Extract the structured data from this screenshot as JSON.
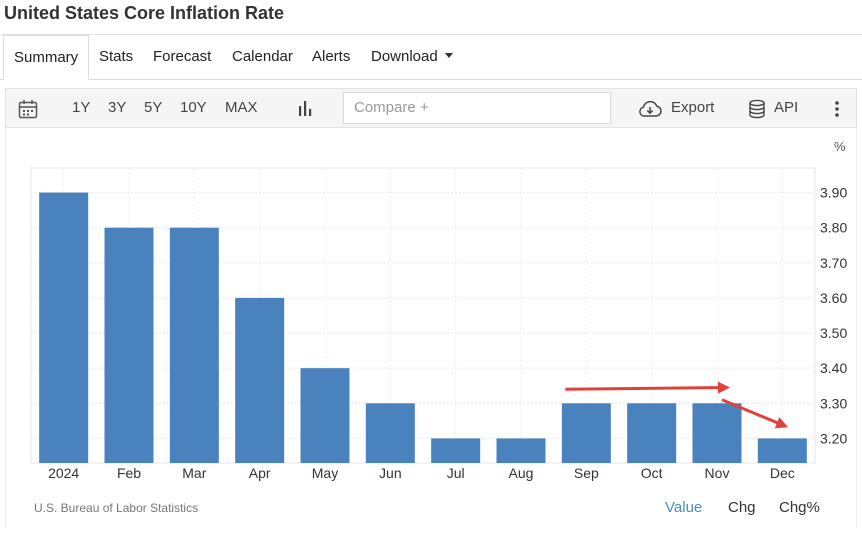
{
  "page": {
    "title": "United States Core Inflation Rate"
  },
  "tabs": [
    {
      "label": "Summary"
    },
    {
      "label": "Stats"
    },
    {
      "label": "Forecast"
    },
    {
      "label": "Calendar"
    },
    {
      "label": "Alerts"
    },
    {
      "label": "Download"
    }
  ],
  "toolbar": {
    "ranges": [
      "1Y",
      "3Y",
      "5Y",
      "10Y",
      "MAX"
    ],
    "compare_placeholder": "Compare +",
    "export_label": "Export",
    "api_label": "API"
  },
  "chart_data": {
    "type": "bar",
    "unit_label": "%",
    "categories": [
      "2024",
      "Feb",
      "Mar",
      "Apr",
      "May",
      "Jun",
      "Jul",
      "Aug",
      "Sep",
      "Oct",
      "Nov",
      "Dec"
    ],
    "values": [
      3.9,
      3.8,
      3.8,
      3.6,
      3.4,
      3.3,
      3.2,
      3.2,
      3.3,
      3.3,
      3.3,
      3.2
    ],
    "ylim": [
      3.13,
      3.97
    ],
    "yticks": [
      "3.90",
      "3.80",
      "3.70",
      "3.60",
      "3.50",
      "3.40",
      "3.30",
      "3.20"
    ],
    "bar_color": "#4a82bd",
    "annotation_color": "#e0413a",
    "annotations": [
      {
        "type": "arrow",
        "from": {
          "x": "Sep",
          "y": 3.34
        },
        "to": {
          "x": "Nov",
          "y": 3.345
        }
      },
      {
        "type": "arrow",
        "from": {
          "x": "Nov",
          "y": 3.31
        },
        "to": {
          "x": "Dec",
          "y": 3.235
        }
      }
    ],
    "grid": true
  },
  "footer": {
    "source": "U.S. Bureau of Labor Statistics",
    "views": [
      "Value",
      "Chg",
      "Chg%"
    ],
    "active_view": "Value"
  }
}
